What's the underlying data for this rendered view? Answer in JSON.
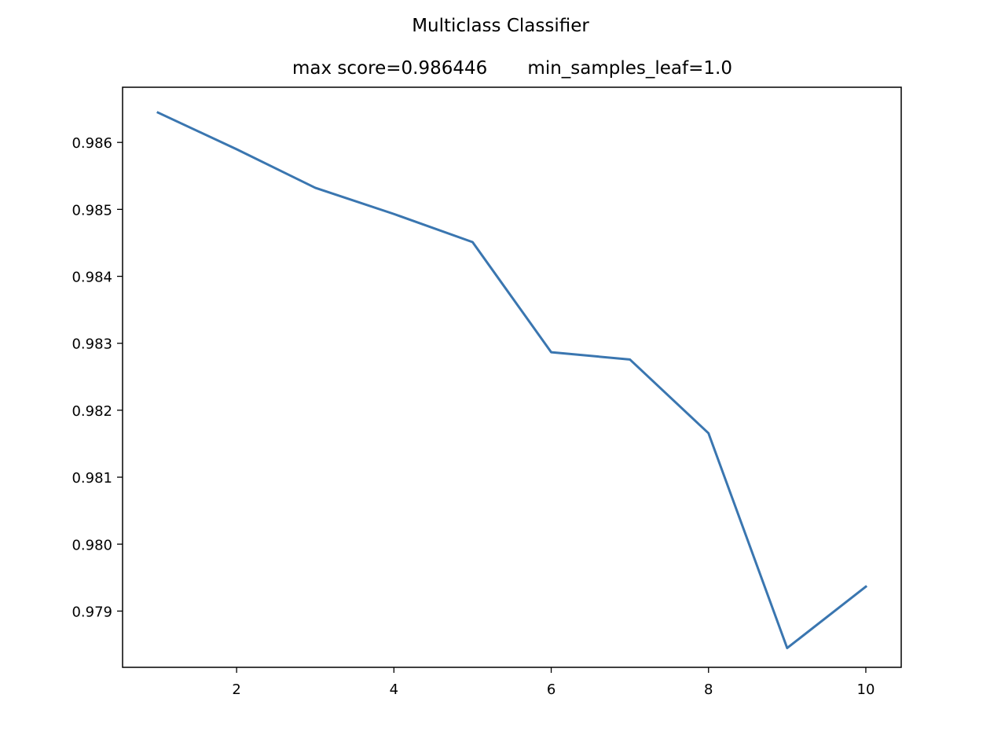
{
  "chart_data": {
    "type": "line",
    "title": "Multiclass Classifier",
    "subtitle": "max score=0.986446       min_samples_leaf=1.0",
    "xlabel": "",
    "ylabel": "",
    "x": [
      1,
      2,
      3,
      4,
      5,
      6,
      7,
      8,
      9,
      10
    ],
    "series": [
      {
        "name": "",
        "values": [
          0.986446,
          0.985898,
          0.985322,
          0.984931,
          0.984511,
          0.982866,
          0.982758,
          0.981656,
          0.978448,
          0.979365
        ]
      }
    ],
    "xlim": [
      0.55,
      10.45
    ],
    "ylim": [
      0.97816,
      0.986824
    ],
    "x_ticks": [
      2,
      4,
      6,
      8,
      10
    ],
    "x_tick_labels": [
      "2",
      "4",
      "6",
      "8",
      "10"
    ],
    "y_ticks": [
      0.979,
      0.98,
      0.981,
      0.982,
      0.983,
      0.984,
      0.985,
      0.986
    ],
    "y_tick_labels": [
      "0.979",
      "0.980",
      "0.981",
      "0.982",
      "0.983",
      "0.984",
      "0.985",
      "0.986"
    ],
    "grid": false,
    "legend": "none",
    "line_color": "#3a76b0"
  }
}
